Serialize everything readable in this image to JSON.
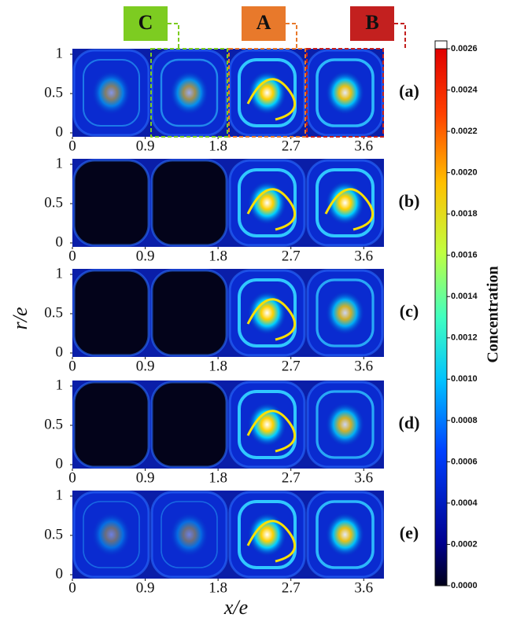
{
  "figure": {
    "markers": [
      {
        "label": "C",
        "color": "#7dcc21"
      },
      {
        "label": "A",
        "color": "#e8792b"
      },
      {
        "label": "B",
        "color": "#c3201f"
      }
    ],
    "xlabel": "x/e",
    "ylabel": "r/e",
    "colorbar": {
      "label": "Concentration",
      "lim": [
        0,
        0.0026
      ],
      "ticks": [
        {
          "value": 0,
          "label": "0.0000"
        },
        {
          "value": 0.0002,
          "label": "0.0002"
        },
        {
          "value": 0.0004,
          "label": "0.0004"
        },
        {
          "value": 0.0006,
          "label": "0.0006"
        },
        {
          "value": 0.0008,
          "label": "0.0008"
        },
        {
          "value": 0.001,
          "label": "0.0010"
        },
        {
          "value": 0.0012,
          "label": "0.0012"
        },
        {
          "value": 0.0014,
          "label": "0.0014"
        },
        {
          "value": 0.0016,
          "label": "0.0016"
        },
        {
          "value": 0.0018,
          "label": "0.0018"
        },
        {
          "value": 0.002,
          "label": "0.0020"
        },
        {
          "value": 0.0022,
          "label": "0.0022"
        },
        {
          "value": 0.0024,
          "label": "0.0024"
        },
        {
          "value": 0.0026,
          "label": "0.0026"
        }
      ]
    }
  },
  "chart_data": [
    {
      "type": "heatmap",
      "panel": "(a)",
      "xlim": [
        0,
        3.85
      ],
      "xticks": [
        0,
        0.9,
        1.8,
        2.7,
        3.6
      ],
      "ylim": [
        -0.05,
        1.07
      ],
      "yticks": [
        0,
        0.5,
        1
      ]
    },
    {
      "type": "heatmap",
      "panel": "(b)",
      "xlim": [
        0,
        3.85
      ],
      "xticks": [
        0,
        0.9,
        1.8,
        2.7,
        3.6
      ],
      "ylim": [
        -0.05,
        1.07
      ],
      "yticks": [
        0,
        0.5,
        1
      ]
    },
    {
      "type": "heatmap",
      "panel": "(c)",
      "xlim": [
        0,
        3.85
      ],
      "xticks": [
        0,
        0.9,
        1.8,
        2.7,
        3.6
      ],
      "ylim": [
        -0.05,
        1.07
      ],
      "yticks": [
        0,
        0.5,
        1
      ]
    },
    {
      "type": "heatmap",
      "panel": "(d)",
      "xlim": [
        0,
        3.85
      ],
      "xticks": [
        0,
        0.9,
        1.8,
        2.7,
        3.6
      ],
      "ylim": [
        -0.05,
        1.07
      ],
      "yticks": [
        0,
        0.5,
        1
      ]
    },
    {
      "type": "heatmap",
      "panel": "(e)",
      "xlim": [
        0,
        3.85
      ],
      "xticks": [
        0,
        0.9,
        1.8,
        2.7,
        3.6
      ],
      "ylim": [
        -0.05,
        1.07
      ],
      "yticks": [
        0,
        0.5,
        1
      ]
    }
  ]
}
